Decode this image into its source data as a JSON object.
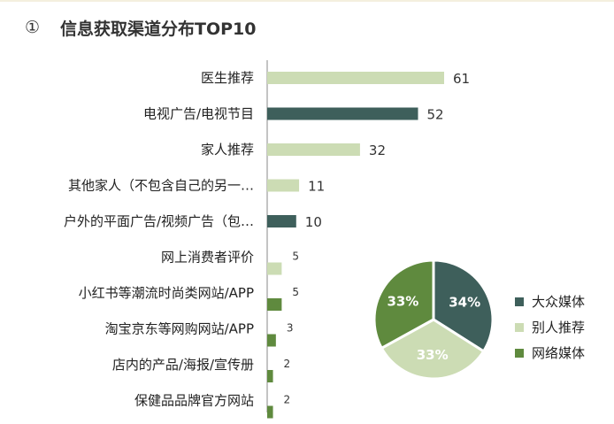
{
  "title": {
    "number": "①",
    "text": "信息获取渠道分布TOP10"
  },
  "colors": {
    "dark": "#3e5f5b",
    "light": "#ccdcb4",
    "green": "#5f8a3e",
    "axis": "#888888"
  },
  "chart_data": [
    {
      "type": "bar",
      "orientation": "horizontal",
      "title": "信息获取渠道分布TOP10",
      "categories": [
        "医生推荐",
        "电视广告/电视节目",
        "家人推荐",
        "其他家人（不包含自己的另一…",
        "户外的平面广告/视频广告（包…",
        "网上消费者评价",
        "小红书等潮流时尚类网站/APP",
        "淘宝京东等网购网站/APP",
        "店内的产品/海报/宣传册",
        "保健品品牌官方网站"
      ],
      "values": [
        61,
        52,
        32,
        11,
        10,
        5,
        5,
        3,
        2,
        2
      ],
      "value_labels": [
        "61",
        "52",
        "32",
        "11",
        "10",
        "5",
        "5",
        "3",
        "2",
        "2"
      ],
      "bar_groups": [
        "别人推荐",
        "大众媒体",
        "别人推荐",
        "别人推荐",
        "大众媒体",
        "别人推荐",
        "网络媒体",
        "网络媒体",
        "网络媒体",
        "网络媒体"
      ],
      "xlim": [
        0,
        61
      ],
      "grid": false,
      "legend": "none"
    },
    {
      "type": "pie",
      "labels": [
        "大众媒体",
        "别人推荐",
        "网络媒体"
      ],
      "values": [
        34,
        33,
        33
      ],
      "value_labels": [
        "34%",
        "33%",
        "33%"
      ],
      "legend": "right"
    }
  ]
}
